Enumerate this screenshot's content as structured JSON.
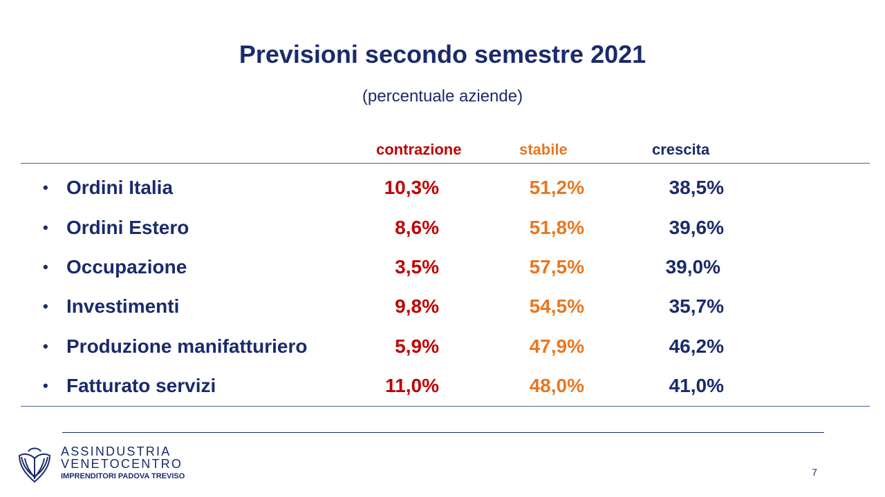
{
  "slide": {
    "title": "Previsioni secondo semestre 2021",
    "subtitle": "(percentuale aziende)",
    "page_number": "7"
  },
  "columns": {
    "contrazione": "contrazione",
    "stabile": "stabile",
    "crescita": "crescita"
  },
  "rows": [
    {
      "label": "Ordini Italia",
      "contrazione": "10,3%",
      "stabile": "51,2%",
      "crescita": "38,5%"
    },
    {
      "label": "Ordini Estero",
      "contrazione": "8,6%",
      "stabile": "51,8%",
      "crescita": "39,6%"
    },
    {
      "label": "Occupazione",
      "contrazione": "3,5%",
      "stabile": "57,5%",
      "crescita": "39,0%"
    },
    {
      "label": "Investimenti",
      "contrazione": "9,8%",
      "stabile": "54,5%",
      "crescita": "35,7%"
    },
    {
      "label": "Produzione manifatturiero",
      "contrazione": "5,9%",
      "stabile": "47,9%",
      "crescita": "46,2%"
    },
    {
      "label": "Fatturato servizi",
      "contrazione": "11,0%",
      "stabile": "48,0%",
      "crescita": "41,0%"
    }
  ],
  "bullet_symbol": "•",
  "footer": {
    "brand_line1": "ASSINDUSTRIA",
    "brand_line2": "VENETOCENTRO",
    "brand_line3": "IMPRENDITORI PADOVA TREVISO",
    "logo_icon": "confindustria-logo-icon"
  },
  "colors": {
    "navy": "#1a2a6c",
    "red": "#c00000",
    "orange": "#e87722"
  }
}
